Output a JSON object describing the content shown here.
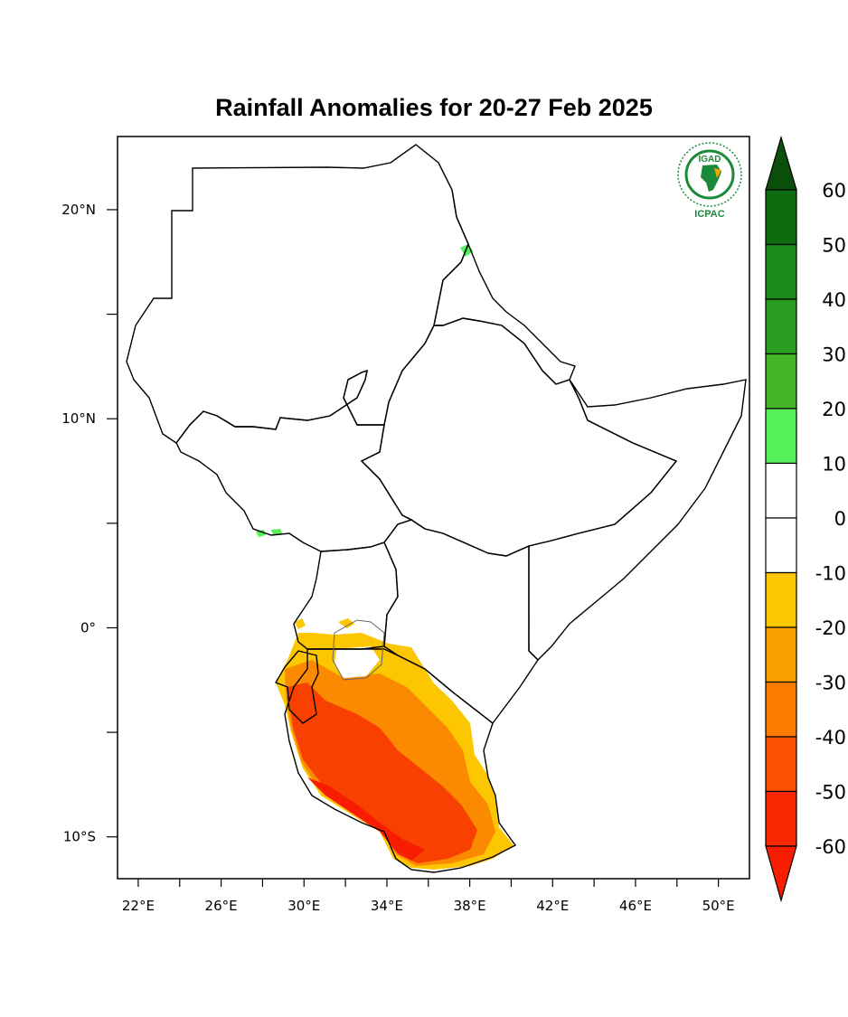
{
  "title": "Rainfall Anomalies for 20-27 Feb 2025",
  "logo": {
    "top_text": "IGAD",
    "bottom_text": "ICPAC",
    "color": "#1a8a3a"
  },
  "map_extent": {
    "lon_range": [
      21,
      51.5
    ],
    "lat_range": [
      -12,
      23.5
    ]
  },
  "axes": {
    "x_ticks": [
      {
        "lon": 22,
        "label": "22°E"
      },
      {
        "lon": 26,
        "label": "26°E"
      },
      {
        "lon": 30,
        "label": "30°E"
      },
      {
        "lon": 34,
        "label": "34°E"
      },
      {
        "lon": 38,
        "label": "38°E"
      },
      {
        "lon": 42,
        "label": "42°E"
      },
      {
        "lon": 46,
        "label": "46°E"
      },
      {
        "lon": 50,
        "label": "50°E"
      }
    ],
    "x_minor": [
      24,
      28,
      32,
      36,
      40,
      44,
      48
    ],
    "y_ticks": [
      {
        "lat": 20,
        "label": "20°N"
      },
      {
        "lat": 10,
        "label": "10°N"
      },
      {
        "lat": 0,
        "label": "0°"
      },
      {
        "lat": -10,
        "label": "10°S"
      }
    ],
    "y_minor": [
      15,
      5,
      -5
    ]
  },
  "colorbar": {
    "labels": [
      "60",
      "50",
      "40",
      "30",
      "20",
      "10",
      "0",
      "-10",
      "-20",
      "-30",
      "-40",
      "-50",
      "-60"
    ],
    "colors": [
      "#0e6b0e",
      "#1c8a1c",
      "#2a9e22",
      "#45b426",
      "#55f05a",
      "#ffffff",
      "#ffffff",
      "#fcc600",
      "#fca000",
      "#fb7a00",
      "#fb5000",
      "#fa2800"
    ],
    "top_arrow": "#0a4f0a",
    "bottom_arrow": "#f81d00"
  }
}
